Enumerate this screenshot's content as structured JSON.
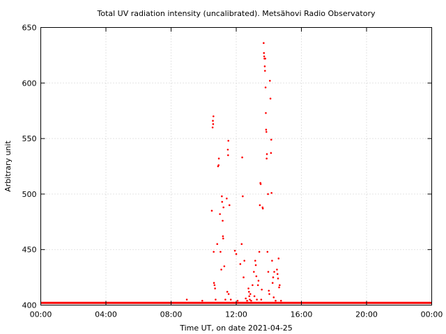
{
  "chart_data": {
    "type": "scatter",
    "title": "Total UV radiation intensity (uncalibrated). Metsähovi Radio Observatory",
    "xlabel": "Time UT, on date 2021-04-25",
    "ylabel": "Arbitrary unit",
    "xlim": [
      "00:00",
      "24:00"
    ],
    "ylim": [
      400,
      650
    ],
    "x_ticks": [
      "00:00",
      "04:00",
      "08:00",
      "12:00",
      "16:00",
      "20:00",
      "00:00"
    ],
    "y_ticks": [
      400,
      450,
      500,
      550,
      600,
      650
    ],
    "grid": true,
    "legend": "none",
    "marker_color": "#ff0000",
    "baseline": {
      "from": "00:00",
      "to": "24:00",
      "value": 402
    },
    "series": [
      {
        "points": [
          [
            "08:58",
            405
          ],
          [
            "09:55",
            404
          ],
          [
            "10:30",
            485
          ],
          [
            "10:33",
            560
          ],
          [
            "10:34",
            566
          ],
          [
            "10:35",
            563
          ],
          [
            "10:36",
            570
          ],
          [
            "10:37",
            448
          ],
          [
            "10:38",
            420
          ],
          [
            "10:40",
            418
          ],
          [
            "10:42",
            415
          ],
          [
            "10:44",
            405
          ],
          [
            "10:50",
            455
          ],
          [
            "10:53",
            525
          ],
          [
            "10:55",
            526
          ],
          [
            "10:56",
            532
          ],
          [
            "11:00",
            482
          ],
          [
            "11:02",
            448
          ],
          [
            "11:05",
            432
          ],
          [
            "11:07",
            498
          ],
          [
            "11:08",
            493
          ],
          [
            "11:10",
            476
          ],
          [
            "11:11",
            462
          ],
          [
            "11:12",
            460
          ],
          [
            "11:13",
            488
          ],
          [
            "11:16",
            435
          ],
          [
            "11:20",
            405
          ],
          [
            "11:25",
            496
          ],
          [
            "11:27",
            412
          ],
          [
            "11:29",
            540
          ],
          [
            "11:30",
            535
          ],
          [
            "11:31",
            548
          ],
          [
            "11:32",
            410
          ],
          [
            "11:35",
            490
          ],
          [
            "11:40",
            405
          ],
          [
            "11:55",
            449
          ],
          [
            "12:00",
            446
          ],
          [
            "12:05",
            404
          ],
          [
            "12:15",
            437
          ],
          [
            "12:20",
            455
          ],
          [
            "12:22",
            533
          ],
          [
            "12:24",
            498
          ],
          [
            "12:27",
            425
          ],
          [
            "12:30",
            440
          ],
          [
            "12:35",
            406
          ],
          [
            "12:40",
            404
          ],
          [
            "12:45",
            415
          ],
          [
            "12:47",
            412
          ],
          [
            "12:48",
            408
          ],
          [
            "12:50",
            405
          ],
          [
            "12:52",
            410
          ],
          [
            "12:55",
            404
          ],
          [
            "13:00",
            418
          ],
          [
            "13:05",
            430
          ],
          [
            "13:07",
            408
          ],
          [
            "13:10",
            440
          ],
          [
            "13:12",
            436
          ],
          [
            "13:14",
            426
          ],
          [
            "13:16",
            405
          ],
          [
            "13:20",
            418
          ],
          [
            "13:22",
            422
          ],
          [
            "13:25",
            448
          ],
          [
            "13:27",
            490
          ],
          [
            "13:29",
            510
          ],
          [
            "13:30",
            509
          ],
          [
            "13:32",
            405
          ],
          [
            "13:34",
            414
          ],
          [
            "13:37",
            488
          ],
          [
            "13:38",
            487
          ],
          [
            "13:41",
            636
          ],
          [
            "13:42",
            627
          ],
          [
            "13:43",
            624
          ],
          [
            "13:44",
            622
          ],
          [
            "13:45",
            615
          ],
          [
            "13:46",
            611
          ],
          [
            "13:47",
            622
          ],
          [
            "13:48",
            596
          ],
          [
            "13:49",
            573
          ],
          [
            "13:50",
            558
          ],
          [
            "13:51",
            556
          ],
          [
            "13:52",
            532
          ],
          [
            "13:53",
            536
          ],
          [
            "13:55",
            448
          ],
          [
            "13:57",
            500
          ],
          [
            "13:58",
            430
          ],
          [
            "14:00",
            413
          ],
          [
            "14:02",
            410
          ],
          [
            "14:04",
            602
          ],
          [
            "14:06",
            586
          ],
          [
            "14:08",
            537
          ],
          [
            "14:09",
            549
          ],
          [
            "14:10",
            501
          ],
          [
            "14:12",
            440
          ],
          [
            "14:14",
            420
          ],
          [
            "14:16",
            425
          ],
          [
            "14:18",
            407
          ],
          [
            "14:20",
            430
          ],
          [
            "14:25",
            404
          ],
          [
            "14:30",
            432
          ],
          [
            "14:32",
            428
          ],
          [
            "14:34",
            424
          ],
          [
            "14:36",
            442
          ],
          [
            "14:38",
            416
          ],
          [
            "14:40",
            418
          ],
          [
            "14:45",
            404
          ]
        ]
      }
    ]
  }
}
